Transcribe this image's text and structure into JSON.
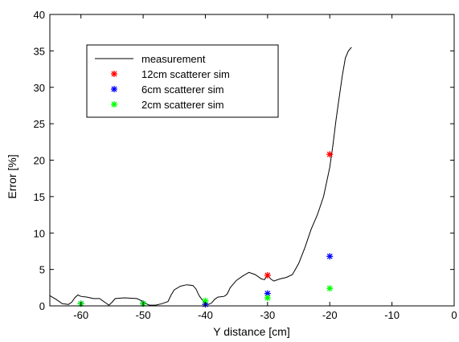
{
  "chart_data": {
    "type": "scatter",
    "xlabel": "Y distance [cm]",
    "ylabel": "Error [%]",
    "xlim": [
      -65,
      0
    ],
    "ylim": [
      0,
      40
    ],
    "xticks": [
      -60,
      -50,
      -40,
      -30,
      -20,
      -10,
      0
    ],
    "yticks": [
      0,
      5,
      10,
      15,
      20,
      25,
      30,
      35,
      40
    ],
    "grid": false,
    "legend_position": "top-left",
    "series": [
      {
        "name": "measurement",
        "kind": "line",
        "color": "#000000",
        "points": [
          [
            -65,
            1.4
          ],
          [
            -64,
            0.9
          ],
          [
            -63,
            0.3
          ],
          [
            -62,
            0.2
          ],
          [
            -61.5,
            0.5
          ],
          [
            -61,
            1.1
          ],
          [
            -60.5,
            1.5
          ],
          [
            -60,
            1.3
          ],
          [
            -59,
            1.2
          ],
          [
            -58,
            1.0
          ],
          [
            -57,
            1.0
          ],
          [
            -56,
            0.4
          ],
          [
            -55.5,
            0.1
          ],
          [
            -55,
            0.5
          ],
          [
            -54.5,
            1.0
          ],
          [
            -53,
            1.1
          ],
          [
            -51,
            1.0
          ],
          [
            -50,
            0.6
          ],
          [
            -49.5,
            0.3
          ],
          [
            -49,
            0.1
          ],
          [
            -48,
            0.1
          ],
          [
            -47,
            0.3
          ],
          [
            -46,
            0.6
          ],
          [
            -45.5,
            1.5
          ],
          [
            -45,
            2.2
          ],
          [
            -44,
            2.7
          ],
          [
            -43,
            2.9
          ],
          [
            -42,
            2.8
          ],
          [
            -41.5,
            2.3
          ],
          [
            -41,
            1.4
          ],
          [
            -40.5,
            0.8
          ],
          [
            -40,
            0.4
          ],
          [
            -39.5,
            0.2
          ],
          [
            -39,
            0.4
          ],
          [
            -38.5,
            0.9
          ],
          [
            -38,
            1.2
          ],
          [
            -37,
            1.3
          ],
          [
            -36.5,
            1.6
          ],
          [
            -36,
            2.5
          ],
          [
            -35,
            3.5
          ],
          [
            -34,
            4.1
          ],
          [
            -33,
            4.6
          ],
          [
            -32,
            4.3
          ],
          [
            -31,
            3.7
          ],
          [
            -30.5,
            3.6
          ],
          [
            -30,
            4.2
          ],
          [
            -29.5,
            3.7
          ],
          [
            -29,
            3.4
          ],
          [
            -28,
            3.7
          ],
          [
            -27,
            3.9
          ],
          [
            -26,
            4.3
          ],
          [
            -25,
            5.8
          ],
          [
            -24,
            8.0
          ],
          [
            -23,
            10.5
          ],
          [
            -22,
            12.5
          ],
          [
            -21,
            15.0
          ],
          [
            -20,
            19.0
          ],
          [
            -19.5,
            22.0
          ],
          [
            -19,
            25.5
          ],
          [
            -18.5,
            28.5
          ],
          [
            -18,
            31.5
          ],
          [
            -17.5,
            34.0
          ],
          [
            -17,
            35.0
          ],
          [
            -16.5,
            35.5
          ]
        ]
      },
      {
        "name": "12cm scatterer sim",
        "kind": "marker",
        "color": "#ff0000",
        "points": [
          [
            -30,
            4.2
          ],
          [
            -20,
            20.8
          ]
        ]
      },
      {
        "name": "6cm scatterer sim",
        "kind": "marker",
        "color": "#0000ff",
        "points": [
          [
            -60,
            0.3
          ],
          [
            -50,
            0.3
          ],
          [
            -40,
            0.2
          ],
          [
            -30,
            1.7
          ],
          [
            -20,
            6.8
          ]
        ]
      },
      {
        "name": "2cm scatterer sim",
        "kind": "marker",
        "color": "#00ff00",
        "points": [
          [
            -60,
            0.3
          ],
          [
            -50,
            0.3
          ],
          [
            -40,
            0.7
          ],
          [
            -30,
            1.1
          ],
          [
            -20,
            2.4
          ]
        ]
      }
    ]
  }
}
